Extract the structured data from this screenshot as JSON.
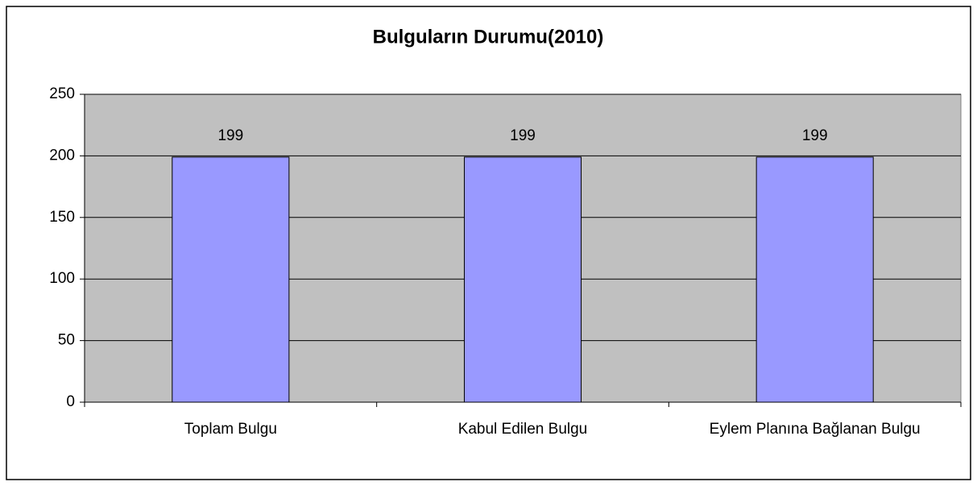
{
  "chart_data": {
    "type": "bar",
    "title": "Bulguların Durumu(2010)",
    "categories": [
      "Toplam Bulgu",
      "Kabul Edilen Bulgu",
      "Eylem Planına Bağlanan Bulgu"
    ],
    "values": [
      199,
      199,
      199
    ],
    "color": "#9999ff",
    "ylim": [
      0,
      250
    ],
    "yticks": [
      0,
      50,
      100,
      150,
      200,
      250
    ],
    "grid": true
  }
}
